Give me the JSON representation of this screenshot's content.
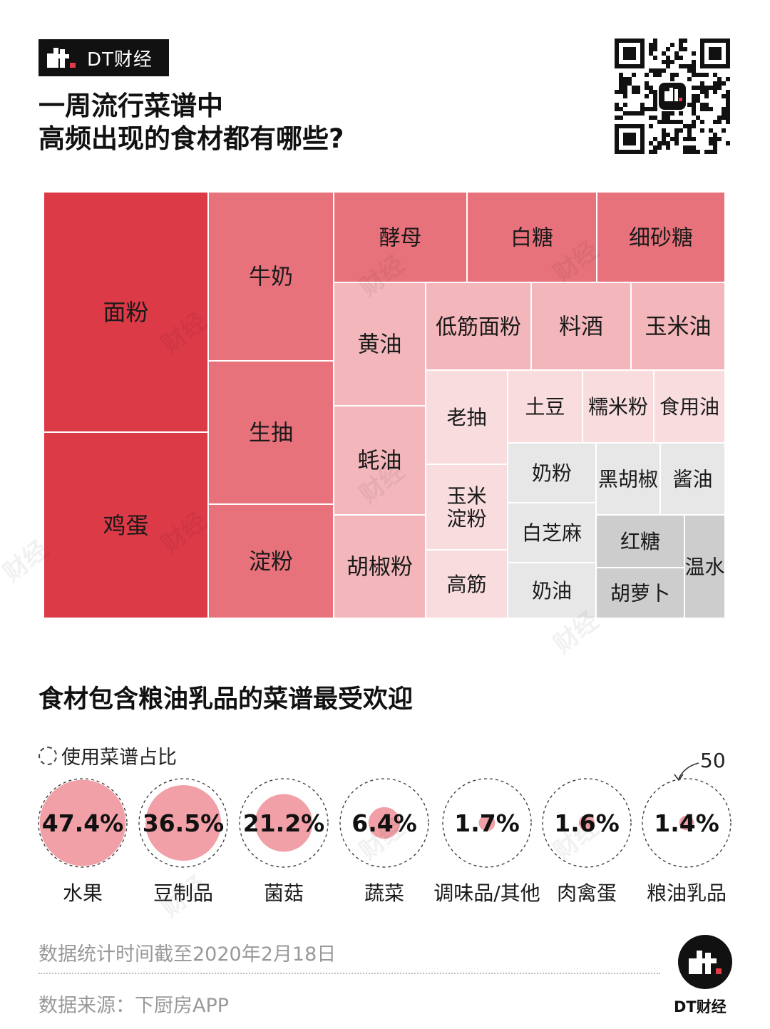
{
  "header": {
    "brand": "DT财经",
    "title_line1": "一周流行菜谱中",
    "title_line2": "高频出现的食材都有哪些?"
  },
  "section2": {
    "title": "食材包含粮油乳品的菜谱最受欢迎",
    "legend_label": "使用菜谱占比",
    "scale_value": "50"
  },
  "footer": {
    "date_note": "数据统计时间截至2020年2月18日",
    "source": "数据来源：下厨房APP",
    "brand": "DT财经",
    "watermark": "财经"
  },
  "colors": {
    "c1": "#dd3a47",
    "c2": "#e8727b",
    "c3": "#f3b6ba",
    "c4": "#f8dcde",
    "g1": "#e7e7e7",
    "g2": "#cdcdcd",
    "bubble": "#f0a0a6"
  },
  "chart_data": [
    {
      "type": "treemap",
      "title": "一周流行菜谱中高频出现的食材都有哪些?",
      "items": [
        {
          "label": "面粉",
          "tier": "c1"
        },
        {
          "label": "鸡蛋",
          "tier": "c1"
        },
        {
          "label": "牛奶",
          "tier": "c2"
        },
        {
          "label": "生抽",
          "tier": "c2"
        },
        {
          "label": "淀粉",
          "tier": "c2"
        },
        {
          "label": "酵母",
          "tier": "c2"
        },
        {
          "label": "白糖",
          "tier": "c2"
        },
        {
          "label": "细砂糖",
          "tier": "c2"
        },
        {
          "label": "黄油",
          "tier": "c3"
        },
        {
          "label": "蚝油",
          "tier": "c3"
        },
        {
          "label": "胡椒粉",
          "tier": "c3"
        },
        {
          "label": "低筋面粉",
          "tier": "c3"
        },
        {
          "label": "料酒",
          "tier": "c3"
        },
        {
          "label": "玉米油",
          "tier": "c3"
        },
        {
          "label": "老抽",
          "tier": "c4"
        },
        {
          "label": "玉米\n淀粉",
          "tier": "c4"
        },
        {
          "label": "高筋",
          "tier": "c4"
        },
        {
          "label": "土豆",
          "tier": "c4"
        },
        {
          "label": "糯米粉",
          "tier": "c4"
        },
        {
          "label": "食用油",
          "tier": "c4"
        },
        {
          "label": "奶粉",
          "tier": "g1"
        },
        {
          "label": "黑胡椒",
          "tier": "g1"
        },
        {
          "label": "酱油",
          "tier": "g1"
        },
        {
          "label": "白芝麻",
          "tier": "g1"
        },
        {
          "label": "奶油",
          "tier": "g1"
        },
        {
          "label": "红糖",
          "tier": "g2"
        },
        {
          "label": "胡萝卜",
          "tier": "g2"
        },
        {
          "label": "温水",
          "tier": "g2"
        }
      ]
    },
    {
      "type": "bubble",
      "title": "食材包含粮油乳品的菜谱最受欢迎",
      "unit": "%",
      "max": 50,
      "categories": [
        "水果",
        "豆制品",
        "菌菇",
        "蔬菜",
        "调味品/其他",
        "肉禽蛋",
        "粮油乳品"
      ],
      "values": [
        47.4,
        36.5,
        21.2,
        6.4,
        1.7,
        1.6,
        1.4
      ],
      "labels": [
        "47.4%",
        "36.5%",
        "21.2%",
        "6.4%",
        "1.7%",
        "1.6%",
        "1.4%"
      ]
    }
  ]
}
